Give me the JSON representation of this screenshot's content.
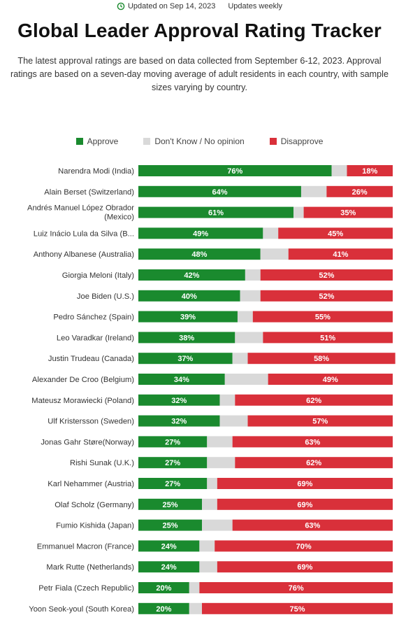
{
  "header": {
    "updated": "Updated on Sep 14, 2023",
    "frequency": "Updates weekly"
  },
  "title": "Global Leader Approval Rating Tracker",
  "subtitle": "The latest approval ratings are based on data collected from September 6-12, 2023. Approval ratings are based on a seven-day moving average of adult residents in each country, with sample sizes varying by country.",
  "colors": {
    "approve": "#1a8a2e",
    "neutral": "#d9d9d9",
    "disapprove": "#d9303a"
  },
  "chart_data": {
    "type": "bar",
    "orientation": "horizontal",
    "stacked": true,
    "xlim": [
      0,
      100
    ],
    "legend": [
      "Approve",
      "Don't Know / No opinion",
      "Disapprove"
    ],
    "legend_position": "top",
    "categories": [
      "Narendra Modi (India)",
      "Alain Berset (Switzerland)",
      "Andrés Manuel López Obrador (Mexico)",
      "Luiz Inácio Lula da Silva (B...",
      "Anthony Albanese (Australia)",
      "Giorgia Meloni (Italy)",
      "Joe Biden (U.S.)",
      "Pedro Sánchez (Spain)",
      "Leo Varadkar (Ireland)",
      "Justin Trudeau (Canada)",
      "Alexander De Croo (Belgium)",
      "Mateusz Morawiecki (Poland)",
      "Ulf Kristersson (Sweden)",
      "Jonas Gahr Støre(Norway)",
      "Rishi Sunak (U.K.)",
      "Karl Nehammer (Austria)",
      "Olaf Scholz (Germany)",
      "Fumio Kishida (Japan)",
      "Emmanuel Macron (France)",
      "Mark Rutte (Netherlands)",
      "Petr Fiala (Czech Republic)",
      "Yoon Seok-youl (South Korea)"
    ],
    "series": [
      {
        "name": "Approve",
        "values": [
          76,
          64,
          61,
          49,
          48,
          42,
          40,
          39,
          38,
          37,
          34,
          32,
          32,
          27,
          27,
          27,
          25,
          25,
          24,
          24,
          20,
          20
        ]
      },
      {
        "name": "Don't Know / No opinion",
        "values": [
          6,
          10,
          4,
          6,
          11,
          6,
          8,
          6,
          11,
          6,
          17,
          6,
          11,
          10,
          11,
          4,
          6,
          12,
          6,
          7,
          4,
          5
        ]
      },
      {
        "name": "Disapprove",
        "values": [
          18,
          26,
          35,
          45,
          41,
          52,
          52,
          55,
          51,
          58,
          49,
          62,
          57,
          63,
          62,
          69,
          69,
          63,
          70,
          69,
          76,
          75
        ]
      }
    ]
  }
}
